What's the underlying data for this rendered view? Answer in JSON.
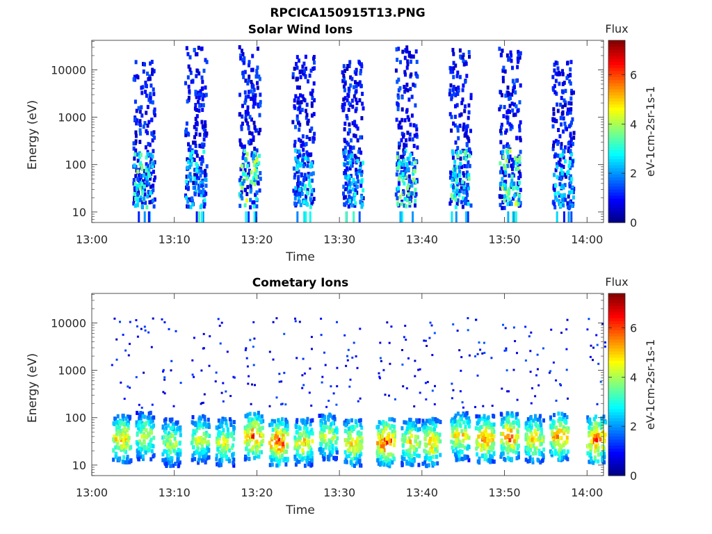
{
  "figure_title": "RPCICA150915T13.PNG",
  "chart_data": [
    {
      "type": "heatmap",
      "title": "Solar Wind Ions",
      "xlabel": "Time",
      "ylabel": "Energy (eV)",
      "x_ticks": [
        "13:00",
        "13:10",
        "13:20",
        "13:30",
        "13:40",
        "13:50",
        "14:00"
      ],
      "xlim": [
        "13:00",
        "14:02"
      ],
      "y_scale": "log",
      "y_ticks": [
        10,
        100,
        1000,
        10000
      ],
      "y_tick_labels": [
        "10",
        "100",
        "1000",
        "10000"
      ],
      "ylim": [
        6,
        42000
      ],
      "colorbar": {
        "title": "Flux",
        "label": "eV-1cm-2sr-1s-1",
        "ticks": [
          0,
          2,
          4,
          6
        ],
        "range": [
          0,
          7.4
        ]
      },
      "bursts": [
        {
          "time": "13:06.2",
          "low_energy_peak_flux": 4.0,
          "top_energy": 15000
        },
        {
          "time": "13:12.5",
          "low_energy_peak_flux": 3.0,
          "top_energy": 30000
        },
        {
          "time": "13:19.0",
          "low_energy_peak_flux": 4.8,
          "top_energy": 30000
        },
        {
          "time": "13:25.5",
          "low_energy_peak_flux": 3.2,
          "top_energy": 20000
        },
        {
          "time": "13:31.5",
          "low_energy_peak_flux": 3.0,
          "top_energy": 15000
        },
        {
          "time": "13:38.0",
          "low_energy_peak_flux": 4.2,
          "top_energy": 30000
        },
        {
          "time": "13:44.5",
          "low_energy_peak_flux": 3.8,
          "top_energy": 30000
        },
        {
          "time": "13:50.5",
          "low_energy_peak_flux": 4.6,
          "top_energy": 30000
        },
        {
          "time": "13:57.0",
          "low_energy_peak_flux": 3.0,
          "top_energy": 15000
        }
      ]
    },
    {
      "type": "heatmap",
      "title": "Cometary Ions",
      "xlabel": "Time",
      "ylabel": "Energy (eV)",
      "x_ticks": [
        "13:00",
        "13:10",
        "13:20",
        "13:30",
        "13:40",
        "13:50",
        "14:00"
      ],
      "xlim": [
        "13:00",
        "14:02"
      ],
      "y_scale": "log",
      "y_ticks": [
        10,
        100,
        1000,
        10000
      ],
      "y_tick_labels": [
        "10",
        "100",
        "1000",
        "10000"
      ],
      "ylim": [
        6,
        42000
      ],
      "colorbar": {
        "title": "Flux",
        "label": "eV-1cm-2sr-1s-1",
        "ticks": [
          0,
          2,
          4,
          6
        ],
        "range": [
          0,
          7.4
        ]
      },
      "bursts": [
        {
          "time": "13:03.5",
          "peak_flux": 6.0,
          "peak_energy": 35
        },
        {
          "time": "13:06.3",
          "peak_flux": 5.2,
          "peak_energy": 40
        },
        {
          "time": "13:09.5",
          "peak_flux": 4.8,
          "peak_energy": 30
        },
        {
          "time": "13:13.0",
          "peak_flux": 5.0,
          "peak_energy": 35
        },
        {
          "time": "13:16.0",
          "peak_flux": 5.2,
          "peak_energy": 30
        },
        {
          "time": "13:19.5",
          "peak_flux": 6.6,
          "peak_energy": 40
        },
        {
          "time": "13:22.5",
          "peak_flux": 6.8,
          "peak_energy": 30
        },
        {
          "time": "13:25.5",
          "peak_flux": 5.6,
          "peak_energy": 30
        },
        {
          "time": "13:28.5",
          "peak_flux": 5.0,
          "peak_energy": 40
        },
        {
          "time": "13:31.5",
          "peak_flux": 5.8,
          "peak_energy": 30
        },
        {
          "time": "13:35.5",
          "peak_flux": 7.0,
          "peak_energy": 30
        },
        {
          "time": "13:38.5",
          "peak_flux": 5.4,
          "peak_energy": 30
        },
        {
          "time": "13:41.0",
          "peak_flux": 5.8,
          "peak_energy": 30
        },
        {
          "time": "13:44.5",
          "peak_flux": 5.6,
          "peak_energy": 40
        },
        {
          "time": "13:47.5",
          "peak_flux": 6.4,
          "peak_energy": 35
        },
        {
          "time": "13:50.5",
          "peak_flux": 6.6,
          "peak_energy": 40
        },
        {
          "time": "13:53.5",
          "peak_flux": 5.6,
          "peak_energy": 35
        },
        {
          "time": "13:56.5",
          "peak_flux": 6.2,
          "peak_energy": 40
        },
        {
          "time": "14:01.0",
          "peak_flux": 6.8,
          "peak_energy": 35
        }
      ]
    }
  ]
}
